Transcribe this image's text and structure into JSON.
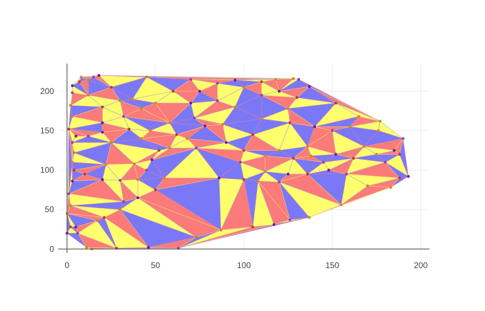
{
  "chart_data": {
    "type": "mesh",
    "title": "",
    "xlabel": "",
    "ylabel": "",
    "xlim": [
      -5,
      205
    ],
    "ylim": [
      -5,
      235
    ],
    "x_ticks": [
      0,
      50,
      100,
      150,
      200
    ],
    "y_ticks": [
      0,
      50,
      100,
      150,
      200
    ],
    "grid": true,
    "face_colors": [
      "#7b78f7",
      "#fb7a7a",
      "#ffff6e"
    ],
    "edge_color": "#999999",
    "point_colors": [
      "#6a1b9a",
      "#c0392b",
      "#e67e22",
      "#b7950b",
      "#8e44ad"
    ],
    "points": [
      [
        0,
        20
      ],
      [
        2,
        28
      ],
      [
        0,
        45
      ],
      [
        2,
        55
      ],
      [
        1,
        70
      ],
      [
        3,
        86
      ],
      [
        4,
        100
      ],
      [
        3,
        110
      ],
      [
        4,
        122
      ],
      [
        3,
        135
      ],
      [
        5,
        143
      ],
      [
        1,
        152
      ],
      [
        3,
        168
      ],
      [
        2,
        182
      ],
      [
        3,
        198
      ],
      [
        3,
        207
      ],
      [
        7,
        212
      ],
      [
        8,
        218
      ],
      [
        12,
        214
      ],
      [
        15,
        218
      ],
      [
        18,
        220
      ],
      [
        25,
        205
      ],
      [
        37,
        190
      ],
      [
        45,
        218
      ],
      [
        70,
        215
      ],
      [
        95,
        214
      ],
      [
        110,
        212
      ],
      [
        118,
        215
      ],
      [
        128,
        216
      ],
      [
        131,
        215
      ],
      [
        137,
        206
      ],
      [
        152,
        185
      ],
      [
        165,
        168
      ],
      [
        177,
        162
      ],
      [
        190,
        140
      ],
      [
        193,
        92
      ],
      [
        188,
        90
      ],
      [
        183,
        78
      ],
      [
        170,
        80
      ],
      [
        158,
        95
      ],
      [
        148,
        100
      ],
      [
        136,
        95
      ],
      [
        155,
        56
      ],
      [
        137,
        40
      ],
      [
        126,
        37
      ],
      [
        117,
        31
      ],
      [
        105,
        28
      ],
      [
        87,
        24
      ],
      [
        73,
        15
      ],
      [
        63,
        1
      ],
      [
        46,
        2
      ],
      [
        28,
        1
      ],
      [
        14,
        0
      ],
      [
        11,
        2
      ],
      [
        6,
        20
      ],
      [
        5,
        28
      ],
      [
        21,
        40
      ],
      [
        17,
        36
      ],
      [
        30,
        50
      ],
      [
        32,
        60
      ],
      [
        40,
        65
      ],
      [
        50,
        75
      ],
      [
        55,
        90
      ],
      [
        40,
        88
      ],
      [
        30,
        87
      ],
      [
        20,
        88
      ],
      [
        10,
        95
      ],
      [
        22,
        107
      ],
      [
        38,
        108
      ],
      [
        45,
        100
      ],
      [
        48,
        113
      ],
      [
        52,
        125
      ],
      [
        42,
        140
      ],
      [
        25,
        135
      ],
      [
        12,
        143
      ],
      [
        20,
        148
      ],
      [
        35,
        152
      ],
      [
        47,
        150
      ],
      [
        58,
        160
      ],
      [
        72,
        166
      ],
      [
        78,
        156
      ],
      [
        62,
        145
      ],
      [
        68,
        140
      ],
      [
        58,
        128
      ],
      [
        73,
        128
      ],
      [
        90,
        135
      ],
      [
        100,
        125
      ],
      [
        112,
        118
      ],
      [
        120,
        125
      ],
      [
        98,
        110
      ],
      [
        86,
        90
      ],
      [
        100,
        88
      ],
      [
        108,
        86
      ],
      [
        112,
        98
      ],
      [
        120,
        85
      ],
      [
        125,
        95
      ],
      [
        128,
        115
      ],
      [
        136,
        130
      ],
      [
        138,
        118
      ],
      [
        145,
        110
      ],
      [
        152,
        120
      ],
      [
        162,
        115
      ],
      [
        168,
        130
      ],
      [
        175,
        120
      ],
      [
        180,
        110
      ],
      [
        185,
        125
      ],
      [
        188,
        120
      ],
      [
        176,
        150
      ],
      [
        160,
        155
      ],
      [
        150,
        150
      ],
      [
        140,
        155
      ],
      [
        126,
        160
      ],
      [
        110,
        165
      ],
      [
        95,
        180
      ],
      [
        85,
        188
      ],
      [
        75,
        200
      ],
      [
        60,
        200
      ],
      [
        50,
        185
      ],
      [
        42,
        178
      ],
      [
        32,
        168
      ],
      [
        20,
        160
      ],
      [
        20,
        180
      ],
      [
        12,
        195
      ],
      [
        30,
        188
      ],
      [
        110,
        195
      ],
      [
        120,
        200
      ],
      [
        130,
        192
      ],
      [
        125,
        178
      ],
      [
        100,
        205
      ],
      [
        85,
        210
      ],
      [
        70,
        185
      ],
      [
        105,
        145
      ],
      [
        88,
        158
      ]
    ]
  }
}
